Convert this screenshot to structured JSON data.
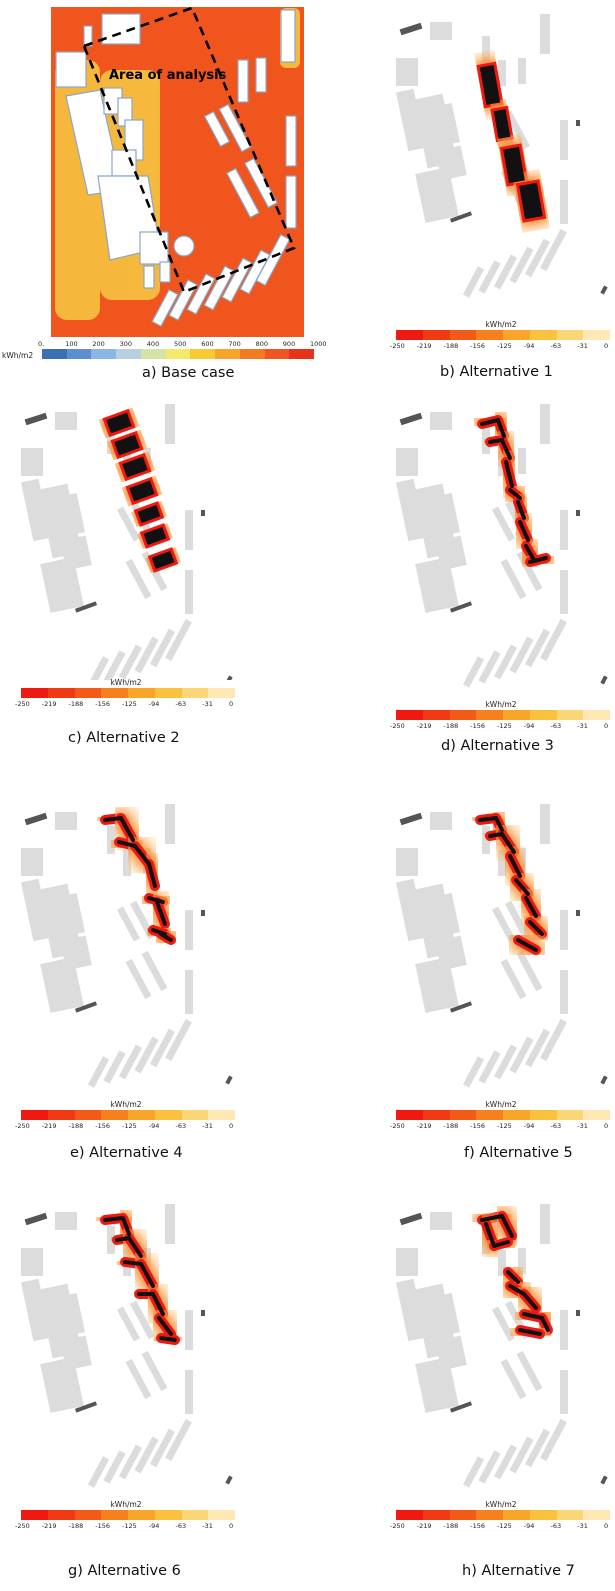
{
  "panels": [
    {
      "id": "a",
      "caption": "a) Base case"
    },
    {
      "id": "b",
      "caption": "b) Alternative 1"
    },
    {
      "id": "c",
      "caption": "c) Alternative 2"
    },
    {
      "id": "d",
      "caption": "d) Alternative 3"
    },
    {
      "id": "e",
      "caption": "e) Alternative 4"
    },
    {
      "id": "f",
      "caption": "f) Alternative 5"
    },
    {
      "id": "g",
      "caption": "g) Alternative 6"
    },
    {
      "id": "h",
      "caption": "h) Alternative 7"
    }
  ],
  "base_case": {
    "area_label": "Area of analysis",
    "legend_unit": "kWh/m2",
    "legend_ticks": [
      "0.",
      "100",
      "200",
      "300",
      "400",
      "500",
      "600",
      "700",
      "800",
      "900",
      "1000"
    ],
    "legend_colors": [
      "#3f6fb3",
      "#5b8fcf",
      "#8bb5e3",
      "#b7cfe0",
      "#d5e2a8",
      "#f1ea6a",
      "#f6c935",
      "#f5a62a",
      "#f27a22",
      "#ee5520",
      "#e8321c"
    ]
  },
  "difference_legend": {
    "unit": "kWh/m2",
    "ticks": [
      "-250",
      "-219",
      "-188",
      "-156",
      "-125",
      "-94",
      "-63",
      "-31",
      "0"
    ],
    "colors": [
      "#ee1a12",
      "#f03a14",
      "#f35a18",
      "#f6801e",
      "#f8a528",
      "#fac23e",
      "#fbd676",
      "#fde8b6"
    ]
  }
}
